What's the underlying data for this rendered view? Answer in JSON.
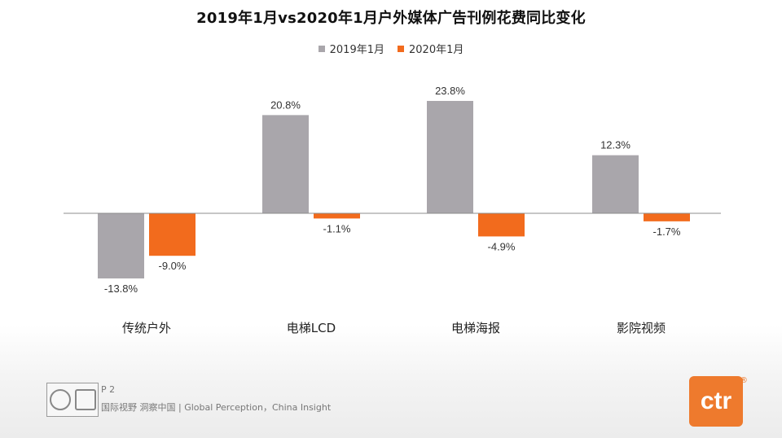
{
  "title": "2019年1月vs2020年1月户外媒体广告刊例花费同比变化",
  "legend": [
    {
      "label": "2019年1月",
      "color": "#a9a6ab"
    },
    {
      "label": "2020年1月",
      "color": "#f26b1d"
    }
  ],
  "chart_data": {
    "type": "bar",
    "categories": [
      "传统户外",
      "电梯LCD",
      "电梯海报",
      "影院视频"
    ],
    "series": [
      {
        "name": "2019年1月",
        "values": [
          -13.8,
          20.8,
          23.8,
          12.3
        ],
        "labels": [
          "-13.8%",
          "20.8%",
          "23.8%",
          "12.3%"
        ],
        "color": "#a9a6ab"
      },
      {
        "name": "2020年1月",
        "values": [
          -9.0,
          -1.1,
          -4.9,
          -1.7
        ],
        "labels": [
          "-9.0%",
          "-1.1%",
          "-4.9%",
          "-1.7%"
        ],
        "color": "#f26b1d"
      }
    ],
    "ylim": [
      -16,
      26
    ],
    "grid": false,
    "legend_position": "top-center"
  },
  "footer": {
    "page": "P 2",
    "text": "国际视野  洞察中国 |  Global Perception，China Insight",
    "brand": "ctr",
    "reg_mark": "®"
  }
}
